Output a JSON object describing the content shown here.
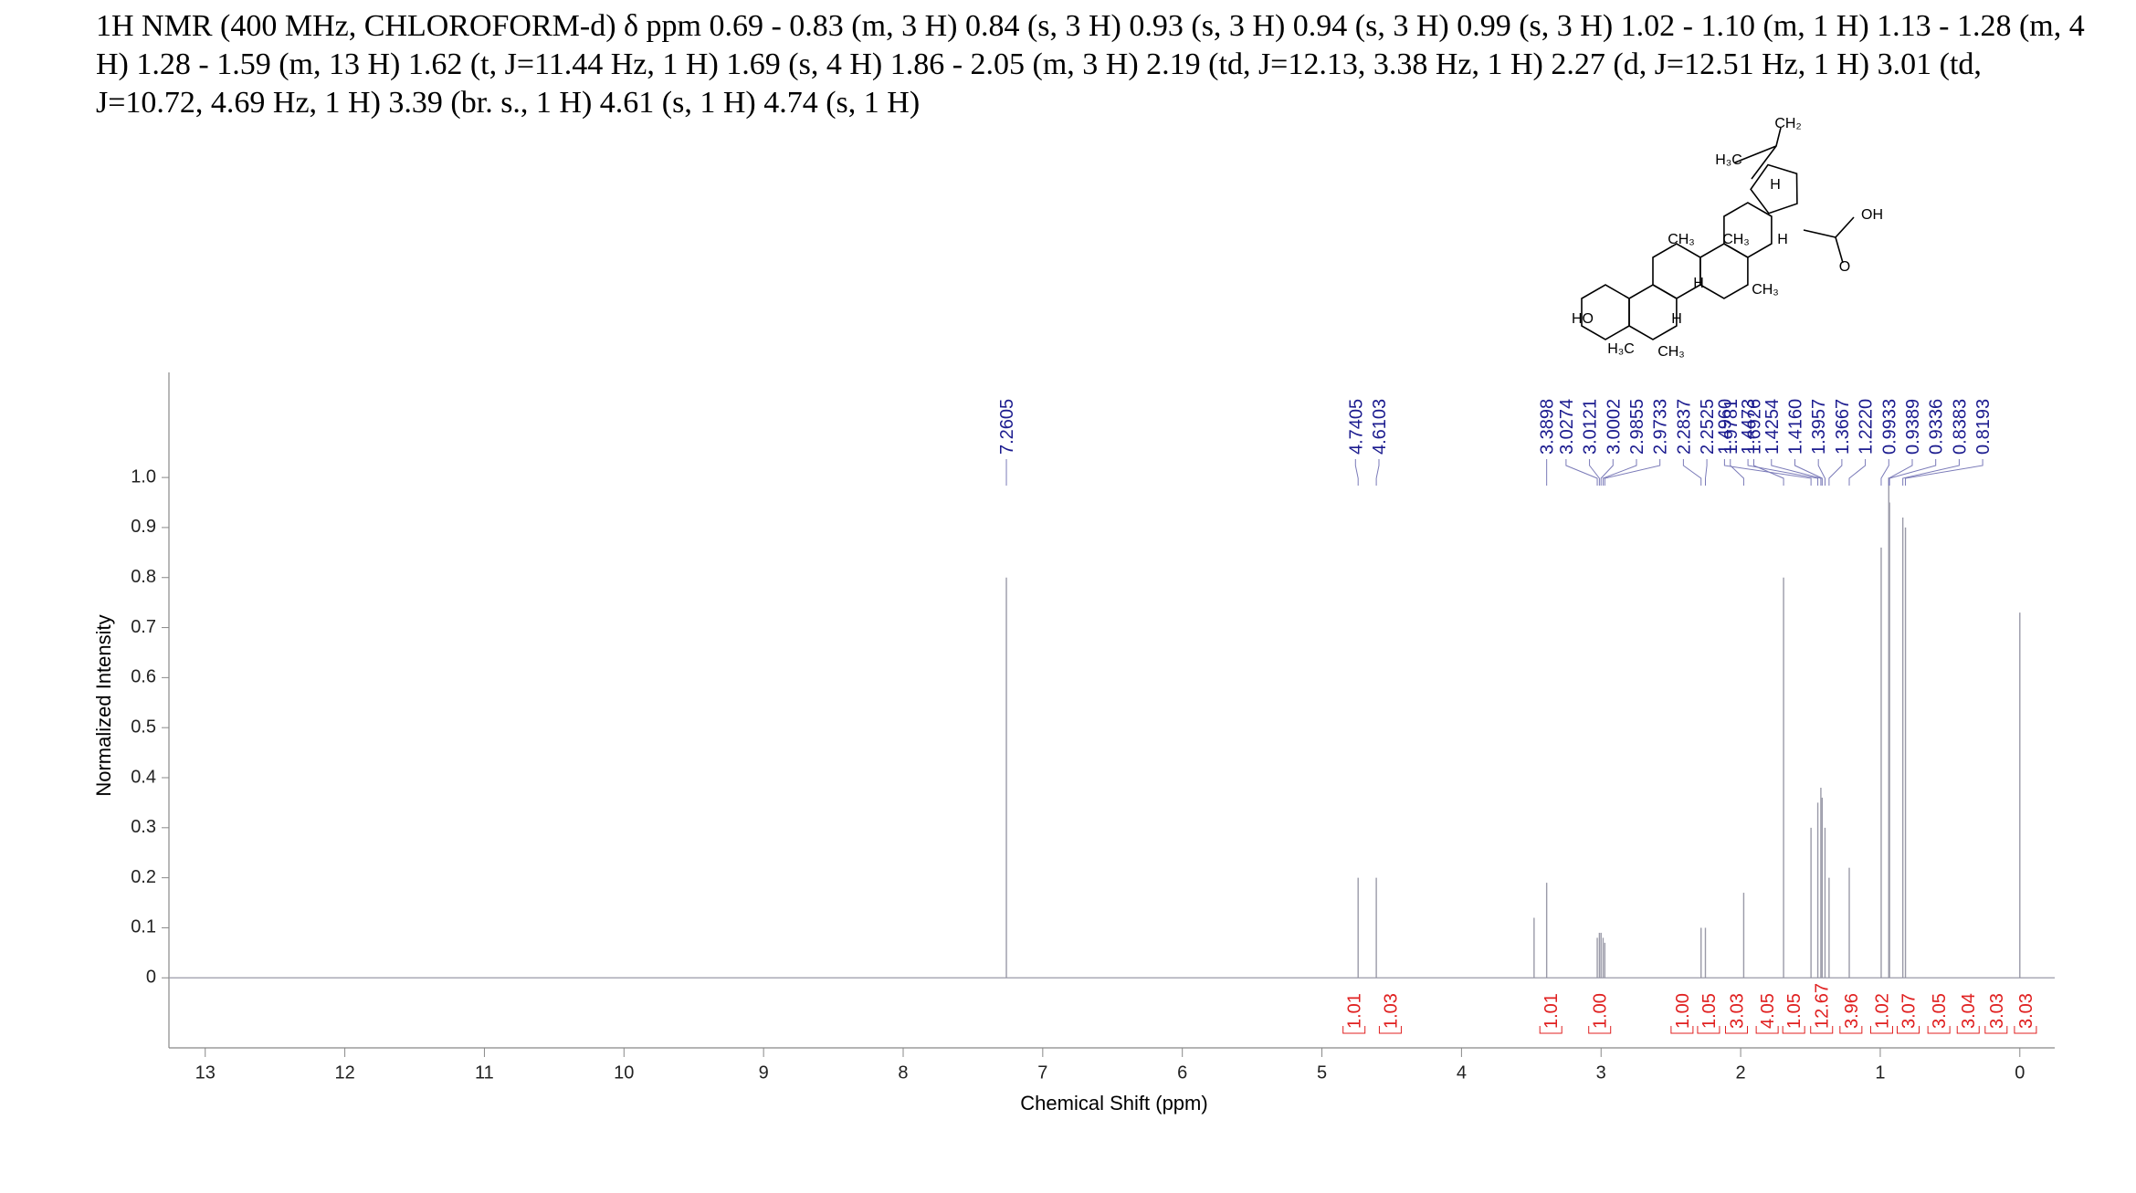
{
  "chart_data": {
    "type": "nmr",
    "title": "1H NMR (400 MHz, CHLOROFORM-d) δ ppm 0.69 - 0.83 (m, 3 H) 0.84 (s, 3 H) 0.93 (s, 3 H) 0.94 (s, 3 H) 0.99 (s, 3 H) 1.02 - 1.10 (m, 1 H) 1.13 - 1.28 (m, 4 H) 1.28 - 1.59 (m, 13 H) 1.62 (t, J=11.44 Hz, 1 H) 1.69 (s, 4 H) 1.86 - 2.05 (m, 3 H) 2.19 (td, J=12.13, 3.38 Hz, 1 H) 2.27 (d, J=12.51 Hz, 1 H) 3.01 (td, J=10.72, 4.69 Hz, 1 H) 3.39 (br. s., 1 H) 4.61 (s, 1 H) 4.74 (s, 1 H)",
    "x_label": "Chemical Shift (ppm)",
    "y_label": "Normalized Intensity",
    "xlim": [
      13.26,
      -0.25
    ],
    "xticks": [
      13,
      12,
      11,
      10,
      9,
      8,
      7,
      6,
      5,
      4,
      3,
      2,
      1,
      0
    ],
    "ylim": [
      -0.14,
      1.21
    ],
    "yticks": [
      0,
      0.1,
      0.2,
      0.3,
      0.4,
      0.5,
      0.6,
      0.7,
      0.8,
      0.9,
      {
        "value": 1,
        "label": "1.0"
      }
    ],
    "peaks": {
      "color": "#9a9aa8",
      "x": [
        7.2605,
        4.7405,
        4.6103,
        3.48,
        3.3898,
        3.0274,
        3.0121,
        3.0002,
        2.9855,
        2.9733,
        2.2837,
        2.2525,
        1.9781,
        1.6926,
        1.496,
        1.4473,
        1.4254,
        1.416,
        1.3957,
        1.3667,
        1.222,
        0.9933,
        0.9389,
        0.9336,
        0.8383,
        0.8193,
        0
      ],
      "values": [
        0.8,
        0.2,
        0.2,
        0.12,
        0.19,
        0.08,
        0.09,
        0.09,
        0.08,
        0.07,
        0.1,
        0.1,
        0.17,
        0.8,
        0.3,
        0.35,
        0.38,
        0.36,
        0.3,
        0.2,
        0.22,
        0.86,
        1.0,
        0.95,
        0.92,
        0.9,
        0.73
      ],
      "value_labels": [
        "7.2605",
        "4.7405",
        "4.6103",
        null,
        "3.3898",
        "3.0274",
        "3.0121",
        "3.0002",
        "2.9855",
        "2.9733",
        "2.2837",
        "2.2525",
        "1.9781",
        "1.6926",
        "1.4960",
        "1.4473",
        "1.4254",
        "1.4160",
        "1.3957",
        "1.3667",
        "1.2220",
        "0.9933",
        "0.9389",
        "0.9336",
        "0.8383",
        "0.8193",
        null
      ]
    },
    "integrals": {
      "color": "#e02020",
      "x": [
        4.77,
        4.51,
        3.36,
        3.01,
        2.42,
        2.23,
        2.03,
        1.81,
        1.62,
        1.42,
        1.21,
        0.99,
        0.8,
        0.58,
        0.37,
        0.17,
        -0.04
      ],
      "values": [
        1.01,
        1.03,
        1.01,
        1,
        1,
        1.05,
        3.03,
        4.05,
        1.05,
        12.67,
        3.96,
        1.02,
        3.07,
        3.05,
        3.04,
        3.03,
        3.03
      ],
      "value_labels": [
        "1.01",
        "1.03",
        "1.01",
        "1.00",
        "1.00",
        "1.05",
        "3.03",
        "4.05",
        "1.05",
        "12.67",
        "3.96",
        "1.02",
        "3.07",
        "3.05",
        "3.04",
        "3.03",
        "3.03"
      ]
    },
    "structure_labels": [
      "CH₂",
      "H₃C",
      "H",
      "OH",
      "CH₃",
      "CH₃",
      "H",
      "H",
      "CH₃",
      "O",
      "HO",
      "H",
      "H₃C",
      "CH₃"
    ]
  }
}
